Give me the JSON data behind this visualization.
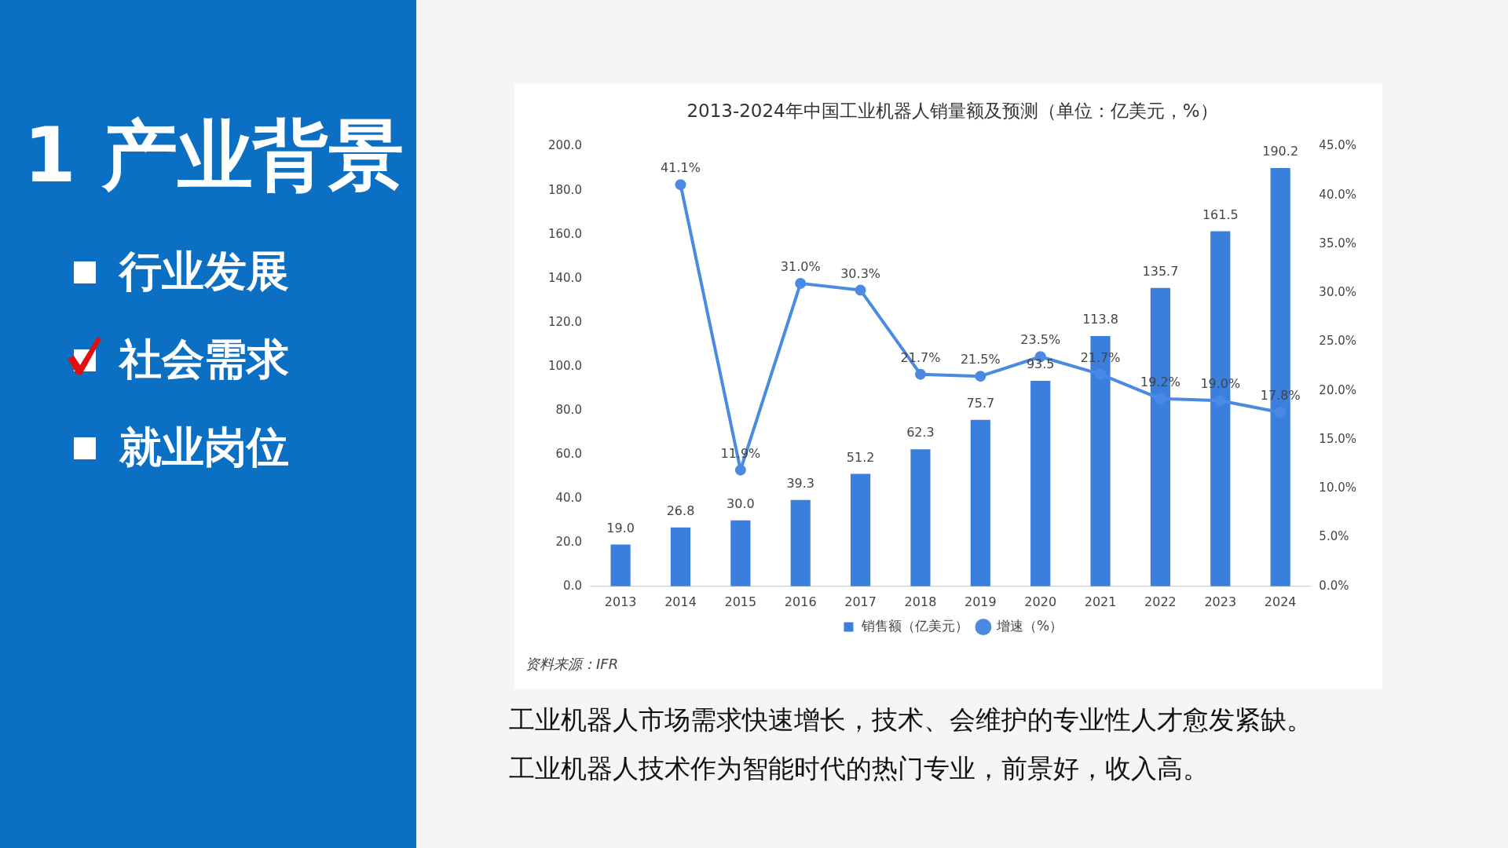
{
  "chart_data": {
    "type": "bar",
    "title": "2013-2024年中国工业机器人销量额及预测（单位：亿美元，%）",
    "categories": [
      "2013",
      "2014",
      "2015",
      "2016",
      "2017",
      "2018",
      "2019",
      "2020",
      "2021",
      "2022",
      "2023",
      "2024"
    ],
    "series": [
      {
        "name": "销售额（亿美元）",
        "color": "#3a7fdc",
        "values": [
          19.0,
          26.8,
          30.0,
          39.3,
          51.2,
          62.3,
          75.7,
          93.5,
          113.8,
          135.7,
          161.5,
          190.2
        ],
        "value_labels": [
          "19.0",
          "26.8",
          "30.0",
          "39.3",
          "51.2",
          "62.3",
          "75.7",
          "93.5",
          "113.8",
          "135.7",
          "161.5",
          "190.2"
        ]
      },
      {
        "name": "增速（%）",
        "type": "line",
        "axis": "y2",
        "color": "#4a8ae2",
        "values": [
          null,
          41.1,
          11.9,
          31.0,
          30.3,
          21.7,
          21.5,
          23.5,
          21.7,
          19.2,
          19.0,
          17.8
        ],
        "value_labels": [
          null,
          "41.1%",
          "11.9%",
          "31.0%",
          "30.3%",
          "21.7%",
          "21.5%",
          "23.5%",
          "21.7%",
          "19.2%",
          "19.0%",
          "17.8%"
        ]
      }
    ],
    "ylim": [
      0,
      200
    ],
    "yticks": [
      {
        "value": 0,
        "label": "0.0"
      },
      {
        "value": 20,
        "label": "20.0"
      },
      {
        "value": 40,
        "label": "40.0"
      },
      {
        "value": 60,
        "label": "60.0"
      },
      {
        "value": 80,
        "label": "80.0"
      },
      {
        "value": 100,
        "label": "100.0"
      },
      {
        "value": 120,
        "label": "120.0"
      },
      {
        "value": 140,
        "label": "140.0"
      },
      {
        "value": 160,
        "label": "160.0"
      },
      {
        "value": 180,
        "label": "180.0"
      },
      {
        "value": 200,
        "label": "200.0"
      }
    ],
    "y2lim": [
      0,
      45
    ],
    "y2ticks": [
      {
        "value": 0,
        "label": "0.0%"
      },
      {
        "value": 5,
        "label": "5.0%"
      },
      {
        "value": 10,
        "label": "10.0%"
      },
      {
        "value": 15,
        "label": "15.0%"
      },
      {
        "value": 20,
        "label": "20.0%"
      },
      {
        "value": 25,
        "label": "25.0%"
      },
      {
        "value": 30,
        "label": "30.0%"
      },
      {
        "value": 35,
        "label": "35.0%"
      },
      {
        "value": 40,
        "label": "40.0%"
      },
      {
        "value": 45,
        "label": "45.0%"
      }
    ],
    "marker": "circle",
    "grid": false,
    "legend": "bottom",
    "annotations": [
      "1 产业背景",
      "行业发展",
      "社会需求",
      "就业岗位",
      "工业机器人市场需求快速增长，技术、会维护的专业性人才愈发紧缺。",
      "工业机器人技术作为智能时代的热门专业，前景好，收入高。",
      "资料来源：IFR"
    ]
  }
}
